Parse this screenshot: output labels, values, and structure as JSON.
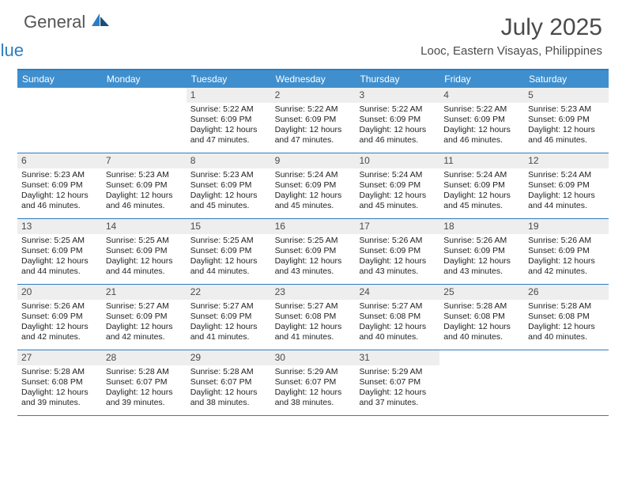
{
  "brand": {
    "general": "General",
    "blue": "Blue"
  },
  "title": "July 2025",
  "location": "Looc, Eastern Visayas, Philippines",
  "colors": {
    "header_bar": "#3f8fce",
    "rule": "#2e7cc0",
    "daynum_bg": "#eeeeee",
    "text": "#222222",
    "title_text": "#4a4a4a"
  },
  "day_headers": [
    "Sunday",
    "Monday",
    "Tuesday",
    "Wednesday",
    "Thursday",
    "Friday",
    "Saturday"
  ],
  "weeks": [
    [
      null,
      null,
      {
        "n": "1",
        "sr": "5:22 AM",
        "ss": "6:09 PM",
        "dl": "12 hours and 47 minutes."
      },
      {
        "n": "2",
        "sr": "5:22 AM",
        "ss": "6:09 PM",
        "dl": "12 hours and 47 minutes."
      },
      {
        "n": "3",
        "sr": "5:22 AM",
        "ss": "6:09 PM",
        "dl": "12 hours and 46 minutes."
      },
      {
        "n": "4",
        "sr": "5:22 AM",
        "ss": "6:09 PM",
        "dl": "12 hours and 46 minutes."
      },
      {
        "n": "5",
        "sr": "5:23 AM",
        "ss": "6:09 PM",
        "dl": "12 hours and 46 minutes."
      }
    ],
    [
      {
        "n": "6",
        "sr": "5:23 AM",
        "ss": "6:09 PM",
        "dl": "12 hours and 46 minutes."
      },
      {
        "n": "7",
        "sr": "5:23 AM",
        "ss": "6:09 PM",
        "dl": "12 hours and 46 minutes."
      },
      {
        "n": "8",
        "sr": "5:23 AM",
        "ss": "6:09 PM",
        "dl": "12 hours and 45 minutes."
      },
      {
        "n": "9",
        "sr": "5:24 AM",
        "ss": "6:09 PM",
        "dl": "12 hours and 45 minutes."
      },
      {
        "n": "10",
        "sr": "5:24 AM",
        "ss": "6:09 PM",
        "dl": "12 hours and 45 minutes."
      },
      {
        "n": "11",
        "sr": "5:24 AM",
        "ss": "6:09 PM",
        "dl": "12 hours and 45 minutes."
      },
      {
        "n": "12",
        "sr": "5:24 AM",
        "ss": "6:09 PM",
        "dl": "12 hours and 44 minutes."
      }
    ],
    [
      {
        "n": "13",
        "sr": "5:25 AM",
        "ss": "6:09 PM",
        "dl": "12 hours and 44 minutes."
      },
      {
        "n": "14",
        "sr": "5:25 AM",
        "ss": "6:09 PM",
        "dl": "12 hours and 44 minutes."
      },
      {
        "n": "15",
        "sr": "5:25 AM",
        "ss": "6:09 PM",
        "dl": "12 hours and 44 minutes."
      },
      {
        "n": "16",
        "sr": "5:25 AM",
        "ss": "6:09 PM",
        "dl": "12 hours and 43 minutes."
      },
      {
        "n": "17",
        "sr": "5:26 AM",
        "ss": "6:09 PM",
        "dl": "12 hours and 43 minutes."
      },
      {
        "n": "18",
        "sr": "5:26 AM",
        "ss": "6:09 PM",
        "dl": "12 hours and 43 minutes."
      },
      {
        "n": "19",
        "sr": "5:26 AM",
        "ss": "6:09 PM",
        "dl": "12 hours and 42 minutes."
      }
    ],
    [
      {
        "n": "20",
        "sr": "5:26 AM",
        "ss": "6:09 PM",
        "dl": "12 hours and 42 minutes."
      },
      {
        "n": "21",
        "sr": "5:27 AM",
        "ss": "6:09 PM",
        "dl": "12 hours and 42 minutes."
      },
      {
        "n": "22",
        "sr": "5:27 AM",
        "ss": "6:09 PM",
        "dl": "12 hours and 41 minutes."
      },
      {
        "n": "23",
        "sr": "5:27 AM",
        "ss": "6:08 PM",
        "dl": "12 hours and 41 minutes."
      },
      {
        "n": "24",
        "sr": "5:27 AM",
        "ss": "6:08 PM",
        "dl": "12 hours and 40 minutes."
      },
      {
        "n": "25",
        "sr": "5:28 AM",
        "ss": "6:08 PM",
        "dl": "12 hours and 40 minutes."
      },
      {
        "n": "26",
        "sr": "5:28 AM",
        "ss": "6:08 PM",
        "dl": "12 hours and 40 minutes."
      }
    ],
    [
      {
        "n": "27",
        "sr": "5:28 AM",
        "ss": "6:08 PM",
        "dl": "12 hours and 39 minutes."
      },
      {
        "n": "28",
        "sr": "5:28 AM",
        "ss": "6:07 PM",
        "dl": "12 hours and 39 minutes."
      },
      {
        "n": "29",
        "sr": "5:28 AM",
        "ss": "6:07 PM",
        "dl": "12 hours and 38 minutes."
      },
      {
        "n": "30",
        "sr": "5:29 AM",
        "ss": "6:07 PM",
        "dl": "12 hours and 38 minutes."
      },
      {
        "n": "31",
        "sr": "5:29 AM",
        "ss": "6:07 PM",
        "dl": "12 hours and 37 minutes."
      },
      null,
      null
    ]
  ],
  "labels": {
    "sunrise": "Sunrise:",
    "sunset": "Sunset:",
    "daylight": "Daylight:"
  }
}
